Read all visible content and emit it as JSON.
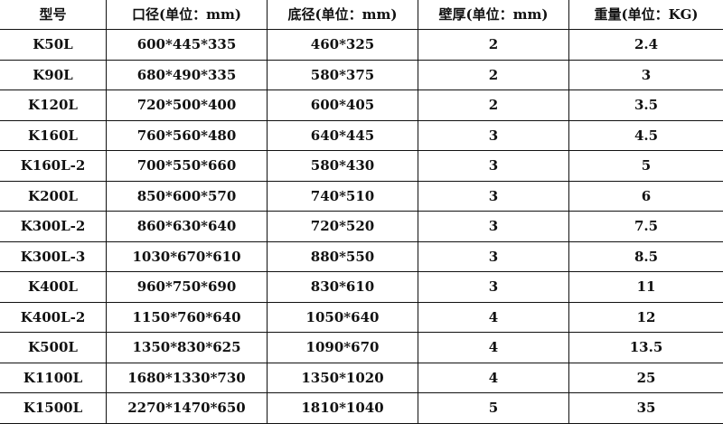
{
  "table": {
    "headers": [
      "型号",
      "口径(单位：mm)",
      "底径(单位：mm)",
      "壁厚(单位：mm)",
      "重量(单位：KG)"
    ],
    "rows": [
      [
        "K50L",
        "600*445*335",
        "460*325",
        "2",
        "2.4"
      ],
      [
        "K90L",
        "680*490*335",
        "580*375",
        "2",
        "3"
      ],
      [
        "K120L",
        "720*500*400",
        "600*405",
        "2",
        "3.5"
      ],
      [
        "K160L",
        "760*560*480",
        "640*445",
        "3",
        "4.5"
      ],
      [
        "K160L-2",
        "700*550*660",
        "580*430",
        "3",
        "5"
      ],
      [
        "K200L",
        "850*600*570",
        "740*510",
        "3",
        "6"
      ],
      [
        "K300L-2",
        "860*630*640",
        "720*520",
        "3",
        "7.5"
      ],
      [
        "K300L-3",
        "1030*670*610",
        "880*550",
        "3",
        "8.5"
      ],
      [
        "K400L",
        "960*750*690",
        "830*610",
        "3",
        "11"
      ],
      [
        "K400L-2",
        "1150*760*640",
        "1050*640",
        "4",
        "12"
      ],
      [
        "K500L",
        "1350*830*625",
        "1090*670",
        "4",
        "13.5"
      ],
      [
        "K1100L",
        "1680*1330*730",
        "1350*1020",
        "4",
        "25"
      ],
      [
        "K1500L",
        "2270*1470*650",
        "1810*1040",
        "5",
        "35"
      ]
    ]
  }
}
